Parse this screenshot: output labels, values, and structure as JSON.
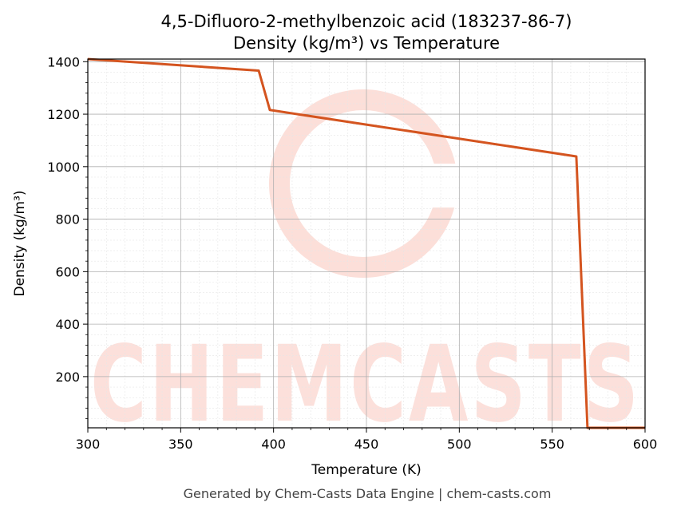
{
  "chart_data": {
    "type": "line",
    "title": "4,5-Difluoro-2-methylbenzoic acid (183237-86-7)",
    "subtitle": "Density (kg/m³) vs Temperature",
    "xlabel": "Temperature (K)",
    "ylabel": "Density (kg/m³)",
    "xlim": [
      300,
      600
    ],
    "ylim": [
      5,
      1410
    ],
    "xticks": [
      300,
      350,
      400,
      450,
      500,
      550,
      600
    ],
    "yticks": [
      200,
      400,
      600,
      800,
      1000,
      1200,
      1400
    ],
    "grid": true,
    "line_color": "#d4541f",
    "series": [
      {
        "x": [
          300,
          392,
          398,
          563,
          569,
          600
        ],
        "y": [
          1410,
          1366,
          1216,
          1039,
          5,
          5
        ]
      }
    ]
  },
  "watermark": {
    "text": "CHEMCASTS",
    "color": "#fbd4cc"
  },
  "footer": "Generated by Chem-Casts Data Engine | chem-casts.com"
}
